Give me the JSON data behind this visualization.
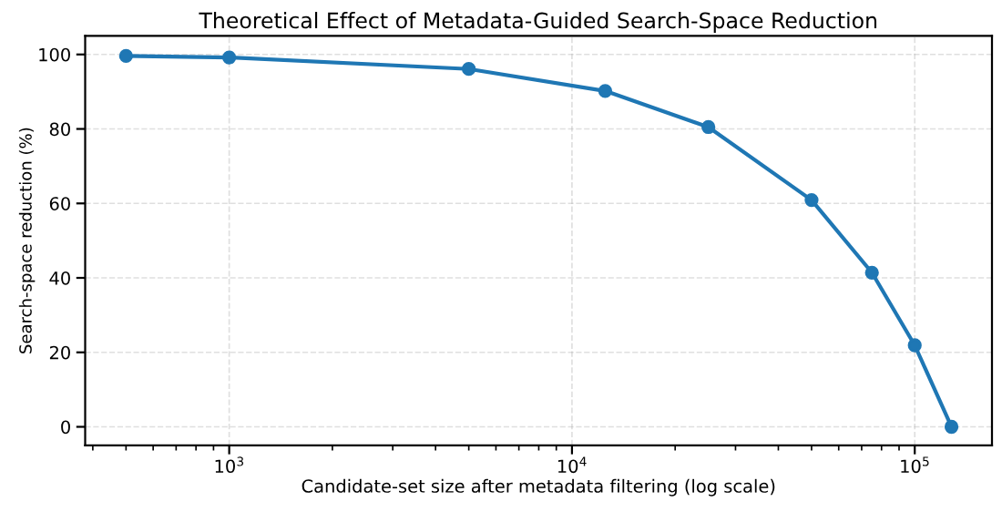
{
  "chart_data": {
    "type": "line",
    "title": "Theoretical Effect of Metadata-Guided Search-Space Reduction",
    "xlabel": "Candidate-set size after metadata filtering (log scale)",
    "ylabel": "Search-space reduction (%)",
    "x": [
      500,
      1000,
      5000,
      12500,
      25000,
      50000,
      75000,
      100000,
      128000
    ],
    "series": [
      {
        "color": "#1f77b4",
        "values": [
          99.6,
          99.2,
          96.1,
          90.2,
          80.5,
          60.9,
          41.4,
          21.9,
          0
        ]
      }
    ],
    "log": "x",
    "xlim": [
      380,
      168000
    ],
    "xticks": [
      {
        "value": 1000,
        "label": "10$^{3}$"
      },
      {
        "value": 10000,
        "label": "10$^{4}$"
      },
      {
        "value": 100000,
        "label": "10$^{5}$"
      }
    ],
    "ylim": [
      -5,
      105
    ],
    "yticks": [
      0,
      20,
      40,
      60,
      80,
      100
    ],
    "grid": true,
    "marker": "circle",
    "line_style": "solid"
  }
}
